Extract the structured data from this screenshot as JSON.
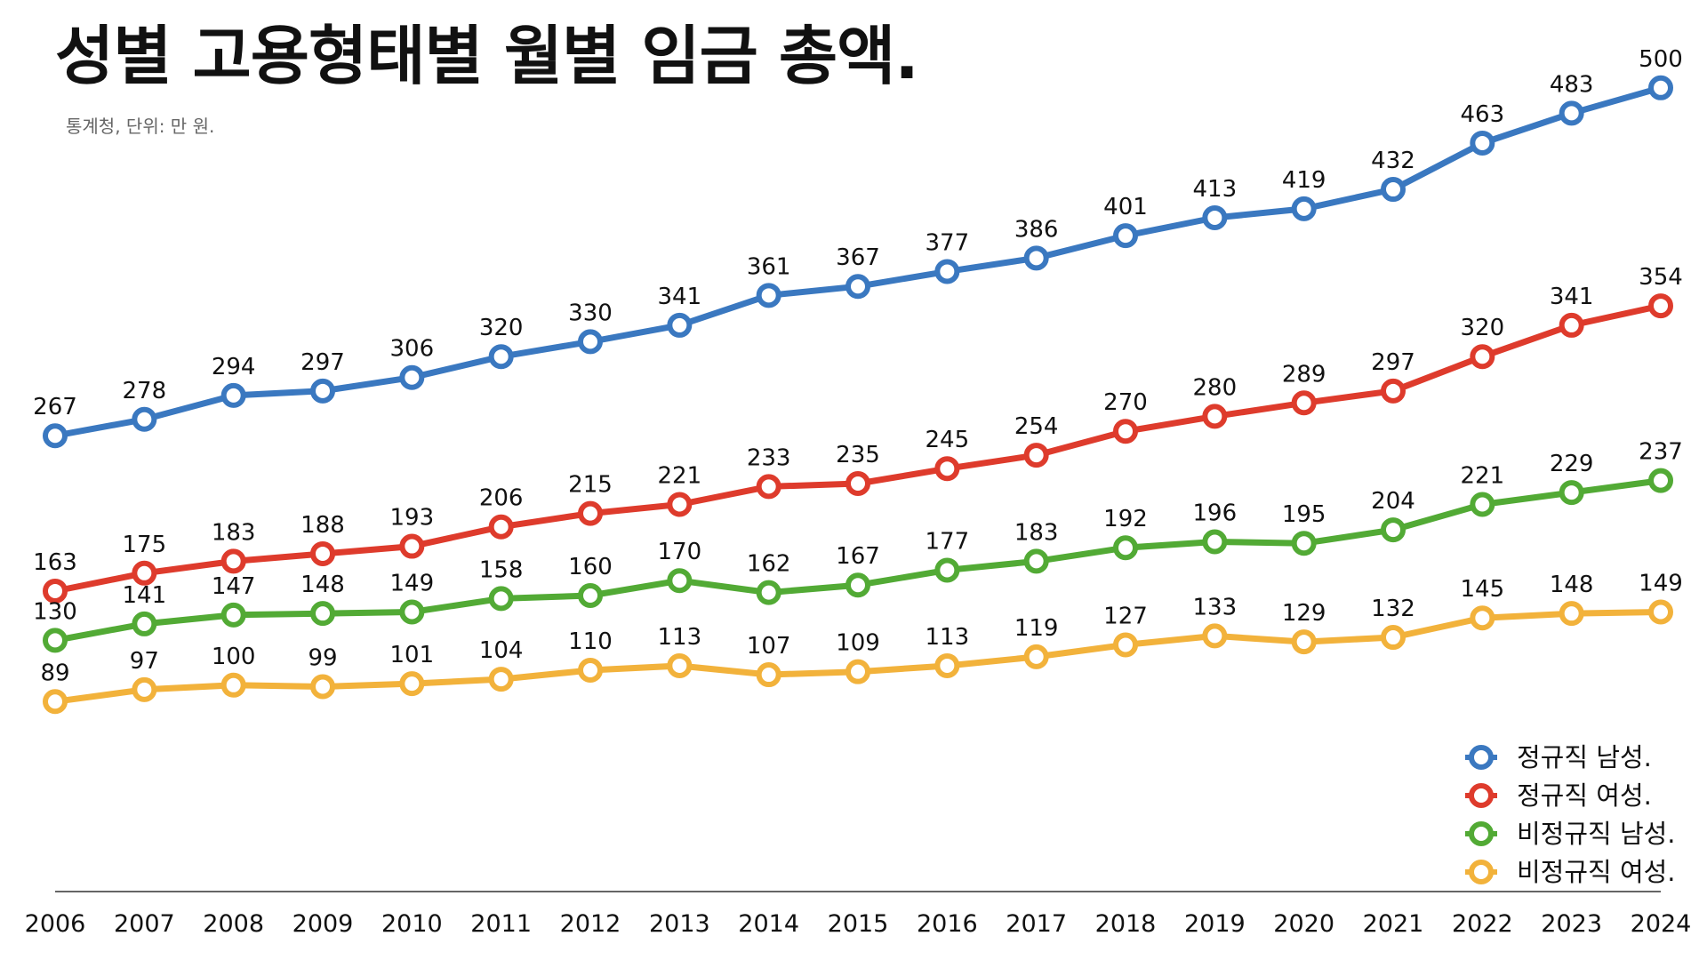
{
  "chart_data": {
    "type": "line",
    "title": "성별 고용형태별 월별 임금 총액.",
    "subtitle": "통계청, 단위: 만 원.",
    "xlabel": "",
    "ylabel": "",
    "x": [
      "2006",
      "2007",
      "2008",
      "2009",
      "2010",
      "2011",
      "2012",
      "2013",
      "2014",
      "2015",
      "2016",
      "2017",
      "2018",
      "2019",
      "2020",
      "2021",
      "2022",
      "2023",
      "2024"
    ],
    "ylim": [
      60,
      510
    ],
    "grid": false,
    "legend_position": "bottom-right",
    "series": [
      {
        "name": "정규직 남성.",
        "color": "#3a78c0",
        "values": [
          267,
          278,
          294,
          297,
          306,
          320,
          330,
          341,
          361,
          367,
          377,
          386,
          401,
          413,
          419,
          432,
          463,
          483,
          500
        ]
      },
      {
        "name": "정규직 여성.",
        "color": "#de3b2c",
        "values": [
          163,
          175,
          183,
          188,
          193,
          206,
          215,
          221,
          233,
          235,
          245,
          254,
          270,
          280,
          289,
          297,
          320,
          341,
          354
        ]
      },
      {
        "name": "비정규직 남성.",
        "color": "#52aa35",
        "values": [
          130,
          141,
          147,
          148,
          149,
          158,
          160,
          170,
          162,
          167,
          177,
          183,
          192,
          196,
          195,
          204,
          221,
          229,
          237
        ]
      },
      {
        "name": "비정규직 여성.",
        "color": "#f2b23b",
        "values": [
          89,
          97,
          100,
          99,
          101,
          104,
          110,
          113,
          107,
          109,
          113,
          119,
          127,
          133,
          129,
          132,
          145,
          148,
          149
        ]
      }
    ]
  }
}
